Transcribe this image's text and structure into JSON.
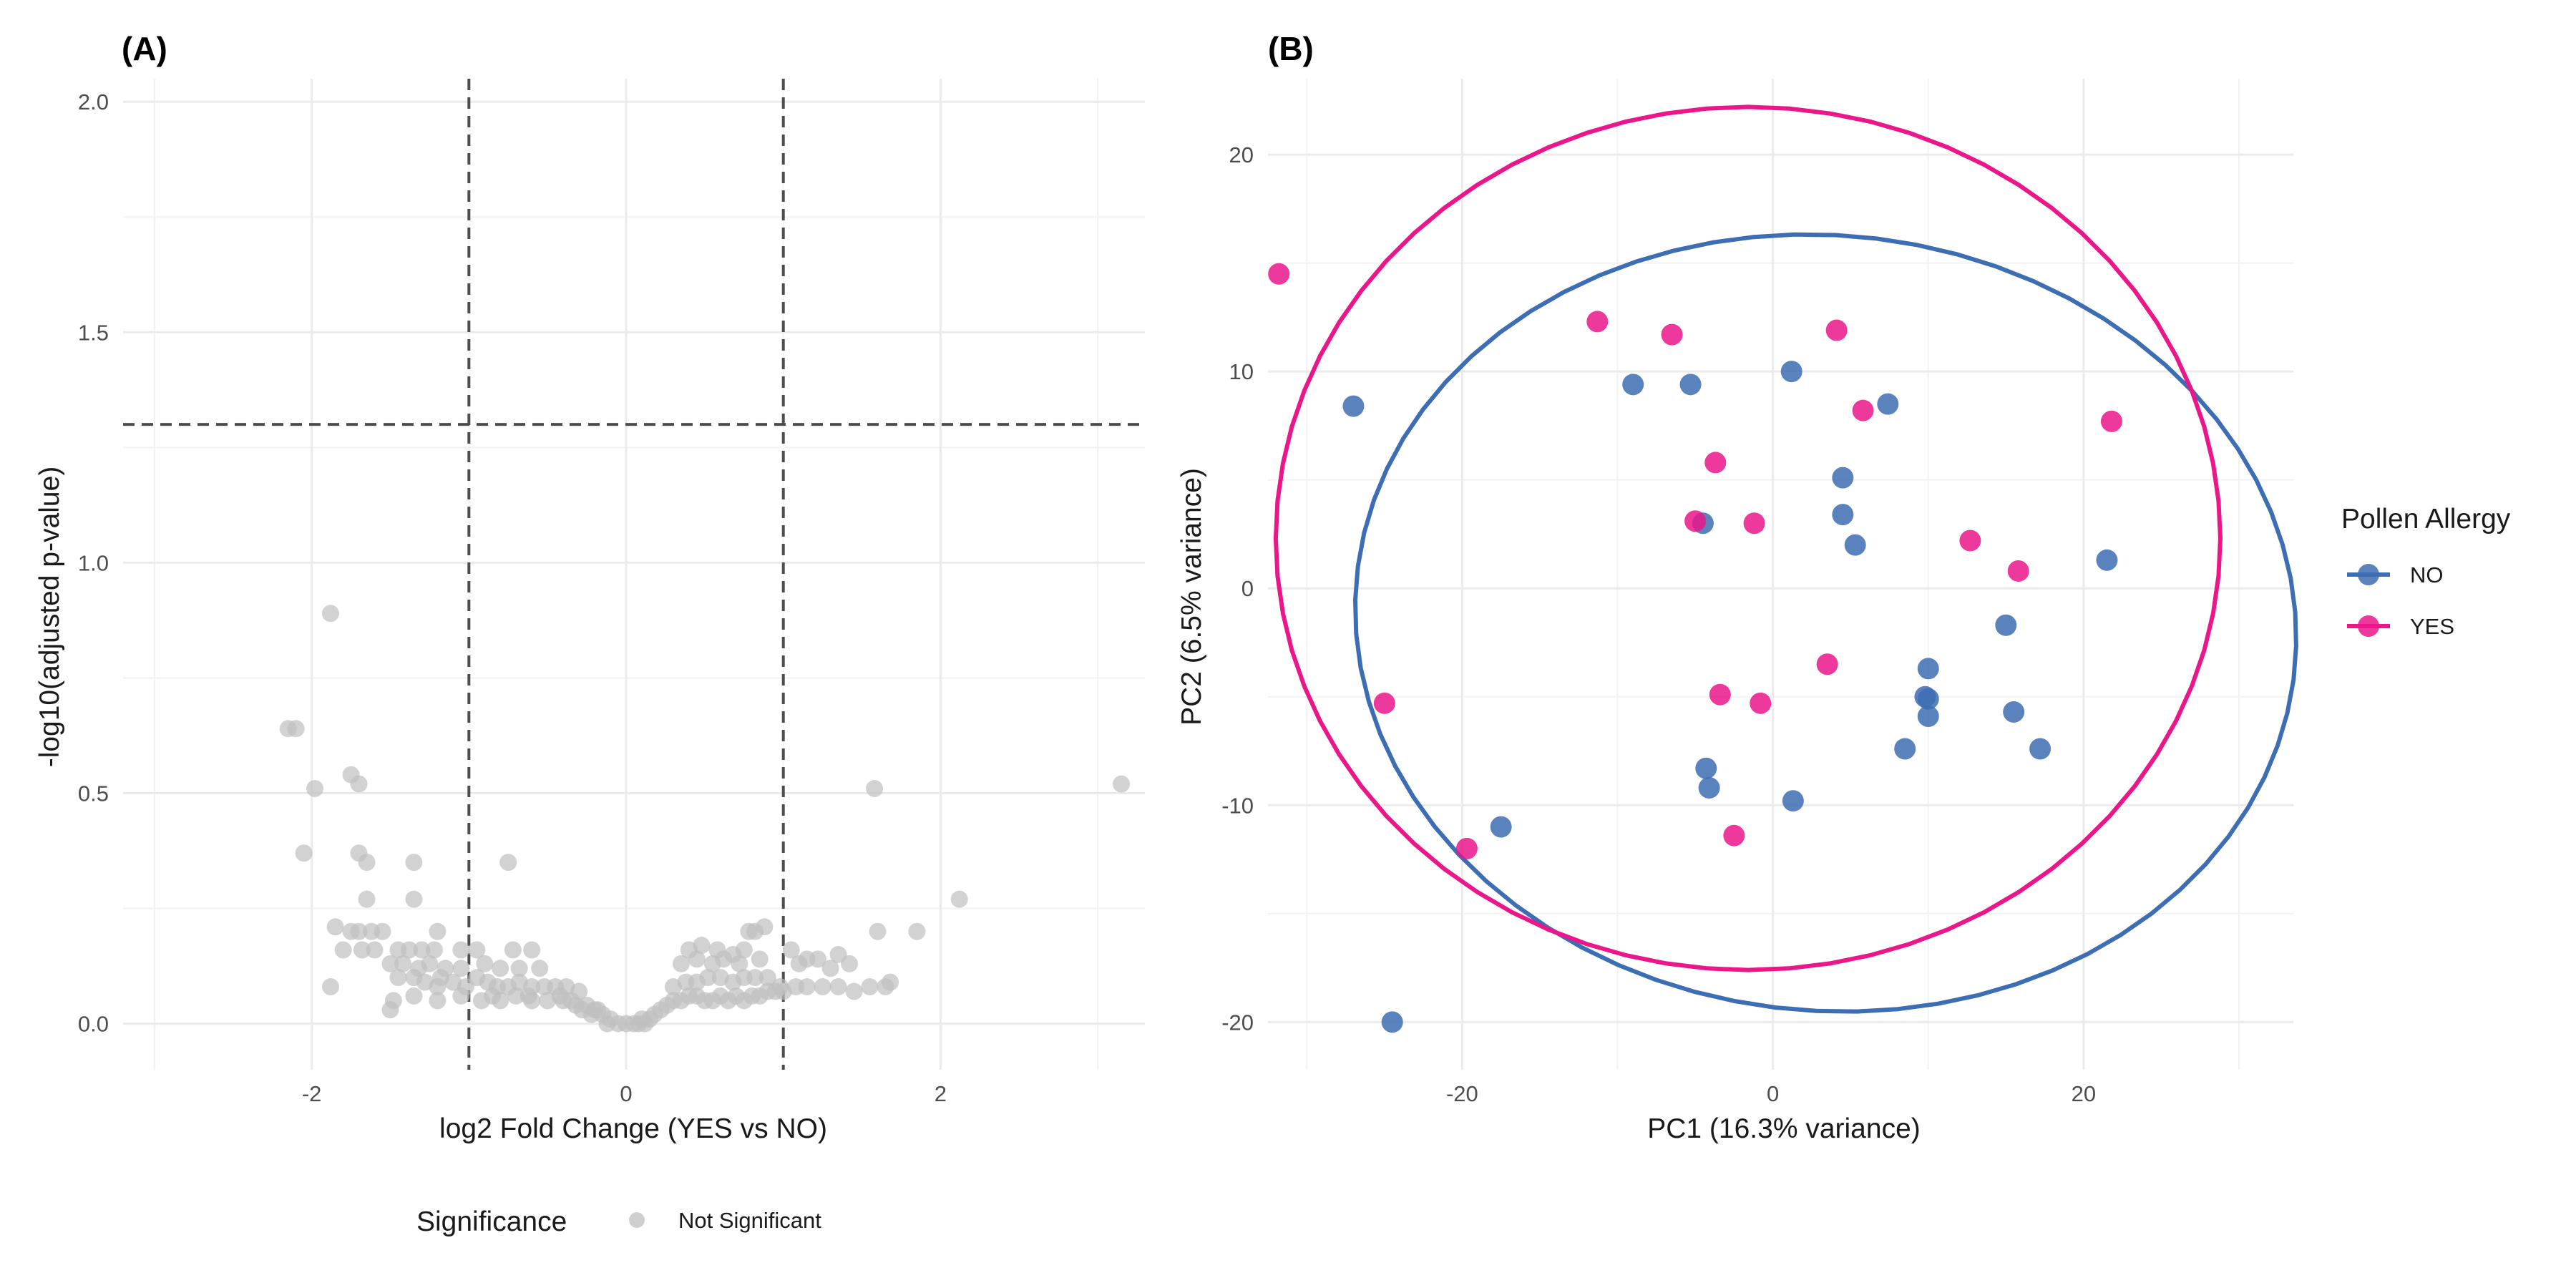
{
  "chart_data": [
    {
      "type": "scatter",
      "panel_label": "(A)",
      "xlabel": "log2 Fold Change (YES vs NO)",
      "ylabel": "-log10(adjusted p-value)",
      "xlim": [
        -3.2,
        3.3
      ],
      "ylim": [
        -0.1,
        2.05
      ],
      "x_ticks": [
        -2,
        0,
        2
      ],
      "y_ticks": [
        0.0,
        0.5,
        1.0,
        1.5,
        2.0
      ],
      "y_tick_labels": [
        "0.0",
        "0.5",
        "1.0",
        "1.5",
        "2.0"
      ],
      "grid": true,
      "threshold_lines": {
        "x": [
          -1,
          1
        ],
        "y": [
          1.3
        ]
      },
      "legend": {
        "title": "Significance",
        "position": "bottom",
        "entries": [
          {
            "label": "Not Significant",
            "color": "#bfbfbf"
          }
        ]
      },
      "point_color": "#bfbfbf",
      "series": [
        {
          "name": "Not Significant",
          "points": [
            [
              -2.1,
              0.64
            ],
            [
              -2.15,
              0.64
            ],
            [
              -1.88,
              0.89
            ],
            [
              -1.98,
              0.51
            ],
            [
              -1.75,
              0.54
            ],
            [
              -1.7,
              0.52
            ],
            [
              -2.05,
              0.37
            ],
            [
              -1.7,
              0.37
            ],
            [
              -1.65,
              0.35
            ],
            [
              -1.35,
              0.35
            ],
            [
              -0.75,
              0.35
            ],
            [
              -1.65,
              0.27
            ],
            [
              -1.35,
              0.27
            ],
            [
              -1.85,
              0.21
            ],
            [
              -1.75,
              0.2
            ],
            [
              -1.7,
              0.2
            ],
            [
              -1.62,
              0.2
            ],
            [
              -1.55,
              0.2
            ],
            [
              -1.2,
              0.2
            ],
            [
              -1.8,
              0.16
            ],
            [
              -1.68,
              0.16
            ],
            [
              -1.6,
              0.16
            ],
            [
              -1.45,
              0.16
            ],
            [
              -1.38,
              0.16
            ],
            [
              -1.3,
              0.16
            ],
            [
              -1.22,
              0.16
            ],
            [
              -1.05,
              0.16
            ],
            [
              -0.95,
              0.16
            ],
            [
              -0.72,
              0.16
            ],
            [
              -0.6,
              0.16
            ],
            [
              -1.88,
              0.08
            ],
            [
              -1.5,
              0.13
            ],
            [
              -1.42,
              0.13
            ],
            [
              -1.32,
              0.12
            ],
            [
              -1.25,
              0.13
            ],
            [
              -1.15,
              0.12
            ],
            [
              -1.05,
              0.12
            ],
            [
              -0.9,
              0.13
            ],
            [
              -0.8,
              0.12
            ],
            [
              -0.68,
              0.12
            ],
            [
              -0.55,
              0.12
            ],
            [
              -1.45,
              0.1
            ],
            [
              -1.35,
              0.1
            ],
            [
              -1.28,
              0.09
            ],
            [
              -1.18,
              0.1
            ],
            [
              -1.1,
              0.09
            ],
            [
              -1.02,
              0.08
            ],
            [
              -0.95,
              0.1
            ],
            [
              -0.88,
              0.09
            ],
            [
              -0.82,
              0.08
            ],
            [
              -0.75,
              0.08
            ],
            [
              -0.68,
              0.09
            ],
            [
              -0.6,
              0.08
            ],
            [
              -0.52,
              0.08
            ],
            [
              -0.45,
              0.08
            ],
            [
              -0.38,
              0.08
            ],
            [
              -0.3,
              0.07
            ],
            [
              -1.48,
              0.05
            ],
            [
              -1.35,
              0.06
            ],
            [
              -1.2,
              0.05
            ],
            [
              -1.05,
              0.06
            ],
            [
              -0.92,
              0.05
            ],
            [
              -0.8,
              0.05
            ],
            [
              -0.7,
              0.06
            ],
            [
              -0.6,
              0.05
            ],
            [
              -0.5,
              0.05
            ],
            [
              -0.4,
              0.05
            ],
            [
              -0.32,
              0.04
            ],
            [
              -0.25,
              0.04
            ],
            [
              -1.5,
              0.03
            ],
            [
              -1.2,
              0.08
            ],
            [
              -0.85,
              0.06
            ],
            [
              -0.62,
              0.06
            ],
            [
              -0.42,
              0.06
            ],
            [
              -0.35,
              0.05
            ],
            [
              -0.2,
              0.03
            ],
            [
              -0.15,
              0.02
            ],
            [
              -0.1,
              0.01
            ],
            [
              -0.05,
              0.0
            ],
            [
              0.0,
              0.0
            ],
            [
              0.05,
              0.0
            ],
            [
              0.1,
              0.01
            ],
            [
              0.15,
              0.01
            ],
            [
              -0.22,
              0.02
            ],
            [
              -0.18,
              0.03
            ],
            [
              -0.28,
              0.03
            ],
            [
              -0.12,
              0.0
            ],
            [
              0.08,
              0.0
            ],
            [
              0.12,
              0.0
            ],
            [
              0.18,
              0.02
            ],
            [
              0.22,
              0.03
            ],
            [
              0.26,
              0.04
            ],
            [
              0.3,
              0.05
            ],
            [
              0.35,
              0.05
            ],
            [
              0.4,
              0.06
            ],
            [
              0.45,
              0.06
            ],
            [
              0.5,
              0.05
            ],
            [
              0.55,
              0.05
            ],
            [
              0.6,
              0.06
            ],
            [
              0.65,
              0.05
            ],
            [
              0.7,
              0.06
            ],
            [
              0.75,
              0.05
            ],
            [
              0.8,
              0.06
            ],
            [
              0.85,
              0.06
            ],
            [
              0.9,
              0.07
            ],
            [
              0.95,
              0.07
            ],
            [
              1.0,
              0.07
            ],
            [
              0.3,
              0.08
            ],
            [
              0.38,
              0.09
            ],
            [
              0.45,
              0.09
            ],
            [
              0.52,
              0.1
            ],
            [
              0.6,
              0.1
            ],
            [
              0.68,
              0.09
            ],
            [
              0.75,
              0.1
            ],
            [
              0.82,
              0.1
            ],
            [
              0.9,
              0.1
            ],
            [
              0.98,
              0.08
            ],
            [
              1.08,
              0.08
            ],
            [
              1.15,
              0.08
            ],
            [
              1.25,
              0.08
            ],
            [
              1.35,
              0.08
            ],
            [
              1.45,
              0.07
            ],
            [
              0.35,
              0.13
            ],
            [
              0.45,
              0.14
            ],
            [
              0.55,
              0.13
            ],
            [
              0.62,
              0.14
            ],
            [
              0.72,
              0.13
            ],
            [
              0.85,
              0.14
            ],
            [
              1.1,
              0.13
            ],
            [
              1.22,
              0.14
            ],
            [
              1.3,
              0.12
            ],
            [
              0.4,
              0.16
            ],
            [
              0.48,
              0.17
            ],
            [
              0.58,
              0.16
            ],
            [
              0.68,
              0.15
            ],
            [
              0.75,
              0.16
            ],
            [
              0.78,
              0.2
            ],
            [
              0.82,
              0.2
            ],
            [
              0.88,
              0.21
            ],
            [
              1.05,
              0.16
            ],
            [
              1.15,
              0.14
            ],
            [
              1.35,
              0.15
            ],
            [
              1.42,
              0.13
            ],
            [
              1.55,
              0.08
            ],
            [
              1.68,
              0.09
            ],
            [
              1.6,
              0.2
            ],
            [
              1.65,
              0.08
            ],
            [
              1.85,
              0.2
            ],
            [
              1.58,
              0.51
            ],
            [
              2.12,
              0.27
            ],
            [
              3.15,
              0.52
            ]
          ]
        }
      ]
    },
    {
      "type": "scatter",
      "panel_label": "(B)",
      "xlabel": "PC1 (16.3% variance)",
      "ylabel": "PC2 (6.5% variance)",
      "xlim": [
        -32.5,
        33.5
      ],
      "ylim": [
        -22.2,
        23.5
      ],
      "x_ticks": [
        -20,
        0,
        20
      ],
      "y_ticks": [
        -20,
        -10,
        0,
        10,
        20
      ],
      "grid": true,
      "ellipses": true,
      "legend": {
        "title": "Pollen Allergy",
        "position": "right",
        "entries": [
          {
            "label": "NO",
            "color": "#3d6db3"
          },
          {
            "label": "YES",
            "color": "#ea168a"
          }
        ]
      },
      "series": [
        {
          "name": "NO",
          "color": "#3d6db3",
          "ellipse": {
            "cx": 3.4,
            "cy": -1.6,
            "rx": 30.3,
            "ry": 17.9,
            "angle_deg": -2
          },
          "points": [
            [
              -27,
              8.4
            ],
            [
              -9,
              9.4
            ],
            [
              -5.3,
              9.4
            ],
            [
              1.2,
              10
            ],
            [
              7.4,
              8.5
            ],
            [
              4.5,
              5.1
            ],
            [
              4.5,
              3.4
            ],
            [
              5.3,
              2
            ],
            [
              -4.5,
              3
            ],
            [
              21.5,
              1.3
            ],
            [
              15,
              -1.7
            ],
            [
              10,
              -3.7
            ],
            [
              9.8,
              -5
            ],
            [
              10,
              -5.1
            ],
            [
              10,
              -5.9
            ],
            [
              15.5,
              -5.7
            ],
            [
              8.5,
              -7.4
            ],
            [
              17.2,
              -7.4
            ],
            [
              -4.3,
              -8.3
            ],
            [
              -4.1,
              -9.2
            ],
            [
              1.3,
              -9.8
            ],
            [
              -17.5,
              -11
            ],
            [
              -24.5,
              -20
            ]
          ]
        },
        {
          "name": "YES",
          "color": "#ea168a",
          "ellipse": {
            "cx": -1.6,
            "cy": 2.3,
            "rx": 30.4,
            "ry": 19.9,
            "angle_deg": 0
          },
          "points": [
            [
              -31.8,
              14.5
            ],
            [
              -11.3,
              12.3
            ],
            [
              -6.5,
              11.7
            ],
            [
              4.1,
              11.9
            ],
            [
              5.8,
              8.2
            ],
            [
              21.8,
              7.7
            ],
            [
              -3.7,
              5.8
            ],
            [
              -5,
              3.1
            ],
            [
              -1.2,
              3
            ],
            [
              12.7,
              2.2
            ],
            [
              15.8,
              0.8
            ],
            [
              3.5,
              -3.5
            ],
            [
              -25,
              -5.3
            ],
            [
              -3.4,
              -4.9
            ],
            [
              -0.8,
              -5.3
            ],
            [
              -19.7,
              -12
            ],
            [
              -2.5,
              -11.4
            ]
          ]
        }
      ]
    }
  ]
}
